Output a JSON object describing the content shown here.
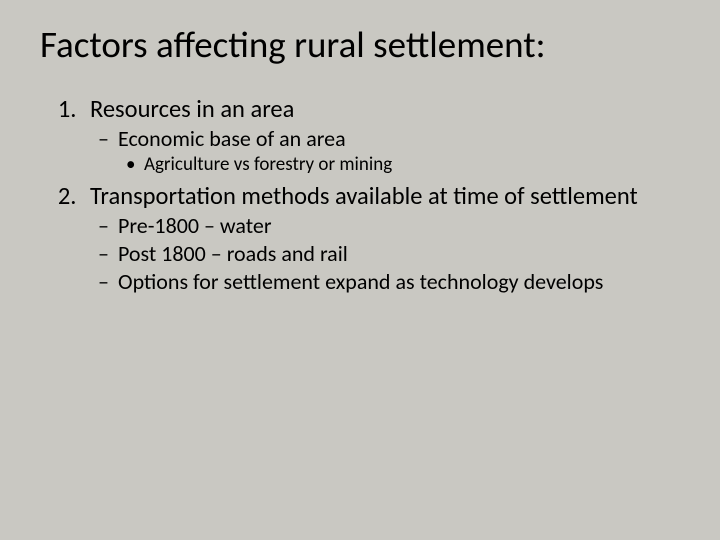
{
  "slide": {
    "background_color": "#c9c8c2",
    "text_color": "#000000",
    "font_family": "Calibri",
    "title": {
      "text": "Factors affecting rural settlement:",
      "fontsize": 37,
      "weight": 400
    },
    "body_fontsize_level1": 24.5,
    "body_fontsize_level2": 22,
    "body_fontsize_level3": 19,
    "items": [
      {
        "text": "Resources in an area",
        "sub": [
          {
            "text": "Economic base of an area",
            "sub": [
              {
                "text": "Agriculture vs forestry or mining"
              }
            ]
          }
        ]
      },
      {
        "text": "Transportation methods available at time of settlement",
        "sub": [
          {
            "text": "Pre-1800 – water"
          },
          {
            "text": "Post 1800 – roads and rail"
          },
          {
            "text": "Options for settlement expand as technology develops"
          }
        ]
      }
    ]
  }
}
